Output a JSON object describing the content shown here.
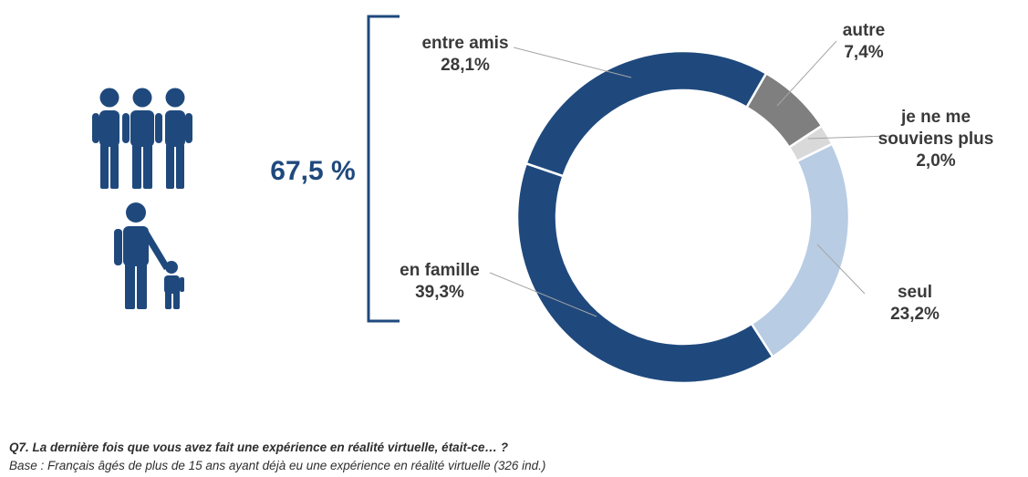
{
  "chart_data": {
    "type": "pie",
    "variant": "donut",
    "start_angle_deg": 30,
    "direction": "clockwise",
    "slices": [
      {
        "label": "autre",
        "label_lines": [
          "autre"
        ],
        "value": 7.4,
        "value_text": "7,4%",
        "color": "#7F7F7F"
      },
      {
        "label": "je ne me souviens plus",
        "label_lines": [
          "je ne me",
          "souviens plus"
        ],
        "value": 2.0,
        "value_text": "2,0%",
        "color": "#D9D9D9"
      },
      {
        "label": "seul",
        "label_lines": [
          "seul"
        ],
        "value": 23.2,
        "value_text": "23,2%",
        "color": "#B8CCE4"
      },
      {
        "label": "en famille",
        "label_lines": [
          "en famille"
        ],
        "value": 39.3,
        "value_text": "39,3%",
        "color": "#1F497D"
      },
      {
        "label": "entre amis",
        "label_lines": [
          "entre amis"
        ],
        "value": 28.1,
        "value_text": "28,1%",
        "color": "#1F497D"
      }
    ],
    "group_total": {
      "value_text": "67,5 %",
      "includes": [
        "en famille",
        "entre amis"
      ],
      "color": "#1F497D"
    }
  },
  "icons": {
    "group": "three-people-icon",
    "family": "parent-child-icon",
    "color": "#1F497D"
  },
  "footer": {
    "question": "Q7. La dernière fois que vous avez fait une expérience en réalité virtuelle, était-ce… ?",
    "base": "Base : Français âgés de plus de 15 ans ayant déjà eu une expérience en réalité virtuelle (326 ind.)"
  }
}
